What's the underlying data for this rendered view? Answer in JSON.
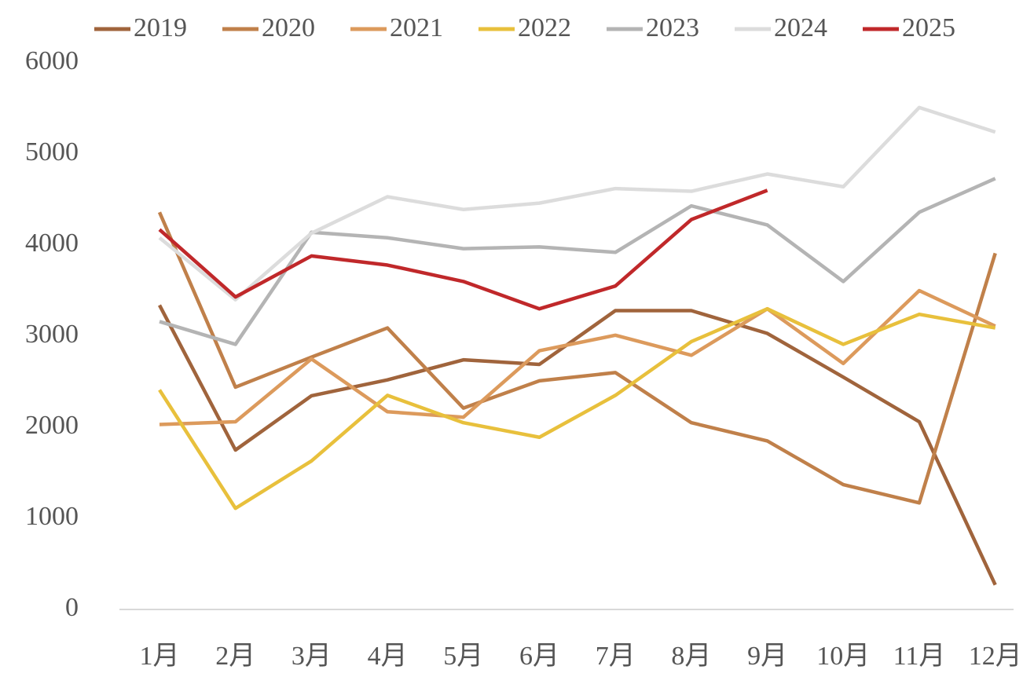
{
  "chart_data": {
    "type": "line",
    "categories": [
      "1月",
      "2月",
      "3月",
      "4月",
      "5月",
      "6月",
      "7月",
      "8月",
      "9月",
      "10月",
      "11月",
      "12月"
    ],
    "series": [
      {
        "name": "2019",
        "color": "#a0643c",
        "values": [
          3340,
          1750,
          2345,
          2520,
          2740,
          2690,
          3280,
          3280,
          3030,
          2550,
          2060,
          270
        ]
      },
      {
        "name": "2020",
        "color": "#c0804a",
        "values": [
          4360,
          2440,
          2770,
          3090,
          2210,
          2510,
          2600,
          2050,
          1850,
          1370,
          1170,
          3910
        ]
      },
      {
        "name": "2021",
        "color": "#dc9a5c",
        "values": [
          2030,
          2060,
          2750,
          2170,
          2110,
          2840,
          3010,
          2790,
          3300,
          2700,
          3500,
          3110
        ]
      },
      {
        "name": "2022",
        "color": "#e8c03c",
        "values": [
          2410,
          1110,
          1630,
          2350,
          2050,
          1890,
          2350,
          2940,
          3300,
          2910,
          3240,
          3090
        ]
      },
      {
        "name": "2023",
        "color": "#b4b4b4",
        "values": [
          3160,
          2910,
          4140,
          4080,
          3960,
          3980,
          3920,
          4430,
          4220,
          3600,
          4360,
          4730
        ]
      },
      {
        "name": "2024",
        "color": "#dcdcdc",
        "values": [
          4080,
          3400,
          4130,
          4530,
          4390,
          4460,
          4620,
          4590,
          4780,
          4640,
          5510,
          5240
        ]
      },
      {
        "name": "2025",
        "color": "#c0282a",
        "values": [
          4170,
          3430,
          3880,
          3780,
          3600,
          3300,
          3550,
          4280,
          4600,
          null,
          null,
          null
        ]
      }
    ],
    "ylim": [
      0,
      6000
    ],
    "yticks": [
      0,
      1000,
      2000,
      3000,
      4000,
      5000,
      6000
    ],
    "grid": false,
    "legend": "top"
  }
}
